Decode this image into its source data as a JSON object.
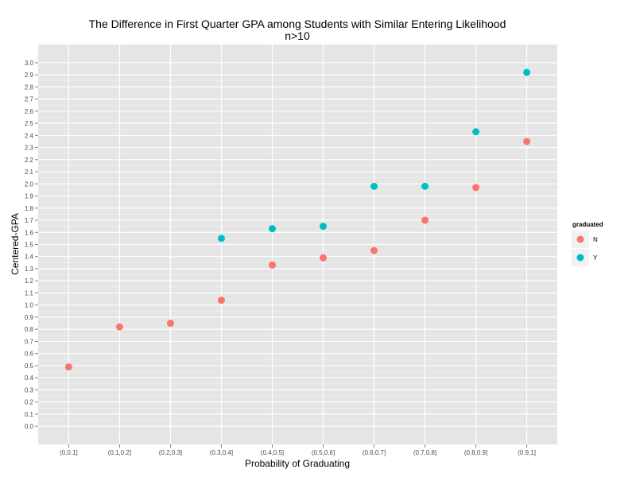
{
  "chart_data": {
    "type": "scatter",
    "title": "The Difference in First Quarter GPA among Students with Similar Entering Likelihood",
    "subtitle": "n>10",
    "xlabel": "Probability of Graduating",
    "ylabel": "Centered-GPA",
    "categories": [
      "(0,0.1]",
      "(0.1,0.2]",
      "(0.2,0.3]",
      "(0.3,0.4]",
      "(0.4,0.5]",
      "(0.5,0.6]",
      "(0.6,0.7]",
      "(0.7,0.8]",
      "(0.8,0.9]",
      "(0.9,1]"
    ],
    "y_ticks": [
      "0.0",
      "0.1",
      "0.2",
      "0.3",
      "0.4",
      "0.5",
      "0.6",
      "0.7",
      "0.8",
      "0.9",
      "1.0",
      "1.1",
      "1.2",
      "1.3",
      "1.4",
      "1.5",
      "1.6",
      "1.7",
      "1.8",
      "1.9",
      "2.0",
      "2.1",
      "2.2",
      "2.3",
      "2.4",
      "2.5",
      "2.6",
      "2.7",
      "2.8",
      "2.9",
      "3.0"
    ],
    "ylim": [
      -0.15,
      3.15
    ],
    "grid": true,
    "legend": {
      "title": "graduated",
      "position": "right"
    },
    "series": [
      {
        "name": "N",
        "color": "#f8766d",
        "values": [
          0.49,
          0.82,
          0.85,
          1.04,
          1.33,
          1.39,
          1.45,
          1.7,
          1.97,
          2.35
        ]
      },
      {
        "name": "Y",
        "color": "#00bfc4",
        "values": [
          null,
          null,
          null,
          1.55,
          1.63,
          1.65,
          1.98,
          1.98,
          2.43,
          2.92
        ]
      }
    ]
  }
}
